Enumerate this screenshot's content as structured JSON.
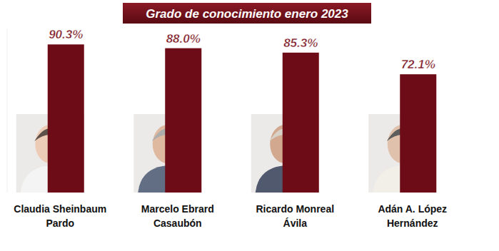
{
  "chart_data": {
    "type": "bar",
    "title": "Grado de conocimiento enero 2023",
    "categories": [
      "Claudia Sheinbaum Pardo",
      "Marcelo Ebrard Casaubón",
      "Ricardo Monreal Ávila",
      "Adán A. López Hernández"
    ],
    "values": [
      90.3,
      88.0,
      85.3,
      72.1
    ],
    "value_labels": [
      "90.3%",
      "88.0%",
      "85.3%",
      "72.1%"
    ],
    "color": "#6d0c16",
    "ylim": [
      0,
      100
    ],
    "data_labels": true,
    "tick_labels": false,
    "grid": false
  }
}
